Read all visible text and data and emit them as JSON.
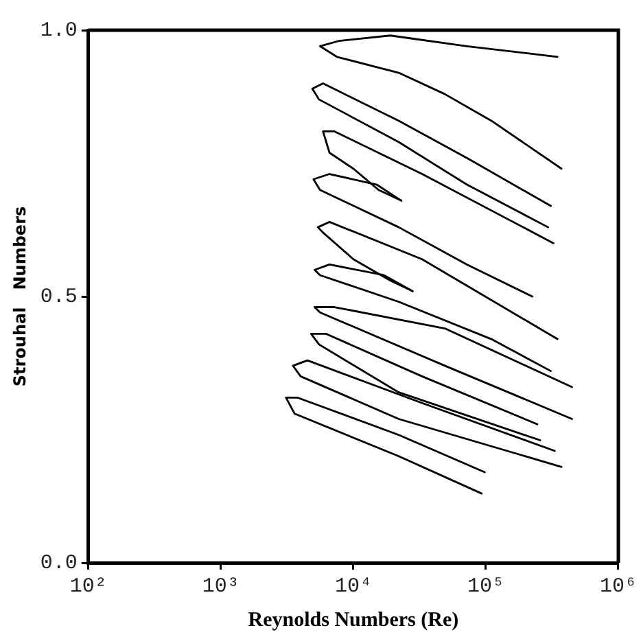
{
  "chart_data": {
    "type": "line",
    "xlabel": "Reynolds Numbers (Re)",
    "ylabel": "Strouhal   Numbers",
    "log": "x",
    "grid": false,
    "legend": false,
    "marker": "none",
    "line_style": "solid",
    "xlim": [
      100,
      1000000
    ],
    "xticks": [
      {
        "value": 100,
        "label": "10²"
      },
      {
        "value": 1000,
        "label": "10³"
      },
      {
        "value": 10000,
        "label": "10⁴"
      },
      {
        "value": 100000,
        "label": "10⁵"
      },
      {
        "value": 1000000,
        "label": "10⁶"
      }
    ],
    "ylim": [
      0,
      1
    ],
    "yticks": [
      {
        "value": 0,
        "label": "0.0"
      },
      {
        "value": 0.5,
        "label": "0.5"
      },
      {
        "value": 1,
        "label": "1.0"
      }
    ],
    "series": [
      {
        "color": "#000000",
        "x": [
          347000,
          72000,
          19000,
          7800,
          5600,
          7500,
          22000,
          49000,
          110000,
          372000
        ],
        "values": [
          0.95,
          0.97,
          0.99,
          0.98,
          0.97,
          0.95,
          0.92,
          0.88,
          0.83,
          0.74
        ]
      },
      {
        "color": "#000000",
        "x": [
          309000,
          72000,
          22000,
          5900,
          4900,
          5500,
          22000,
          72000,
          295000
        ],
        "values": [
          0.67,
          0.76,
          0.83,
          0.9,
          0.89,
          0.87,
          0.79,
          0.71,
          0.63
        ]
      },
      {
        "color": "#000000",
        "x": [
          324000,
          33000,
          7200,
          5900,
          6600,
          10000,
          15500,
          23000
        ],
        "values": [
          0.6,
          0.73,
          0.81,
          0.81,
          0.77,
          0.74,
          0.7,
          0.68
        ]
      },
      {
        "color": "#000000",
        "x": [
          23000,
          15000,
          6600,
          5000,
          5600,
          22000,
          72000,
          224000
        ],
        "values": [
          0.68,
          0.71,
          0.73,
          0.72,
          0.7,
          0.63,
          0.56,
          0.5
        ]
      },
      {
        "color": "#000000",
        "x": [
          347000,
          33000,
          6600,
          5400,
          5900,
          10000,
          19000,
          28000
        ],
        "values": [
          0.42,
          0.57,
          0.64,
          0.63,
          0.62,
          0.57,
          0.53,
          0.51
        ]
      },
      {
        "color": "#000000",
        "x": [
          28000,
          17000,
          6600,
          5100,
          5600,
          22000,
          110000,
          309000
        ],
        "values": [
          0.51,
          0.54,
          0.56,
          0.55,
          0.54,
          0.49,
          0.42,
          0.36
        ]
      },
      {
        "color": "#000000",
        "x": [
          447000,
          49000,
          7200,
          5100,
          5600,
          49000,
          447000
        ],
        "values": [
          0.33,
          0.44,
          0.48,
          0.48,
          0.47,
          0.37,
          0.27
        ]
      },
      {
        "color": "#000000",
        "x": [
          245000,
          33000,
          6200,
          4800,
          5500,
          22000,
          257000
        ],
        "values": [
          0.26,
          0.35,
          0.43,
          0.43,
          0.41,
          0.32,
          0.23
        ]
      },
      {
        "color": "#000000",
        "x": [
          331000,
          33000,
          4500,
          3500,
          4000,
          22000,
          372000
        ],
        "values": [
          0.21,
          0.3,
          0.38,
          0.37,
          0.35,
          0.27,
          0.18
        ]
      },
      {
        "color": "#000000",
        "x": [
          98000,
          22000,
          3800,
          3100,
          3600,
          22000,
          93000
        ],
        "values": [
          0.17,
          0.24,
          0.31,
          0.31,
          0.28,
          0.2,
          0.13
        ]
      }
    ]
  }
}
